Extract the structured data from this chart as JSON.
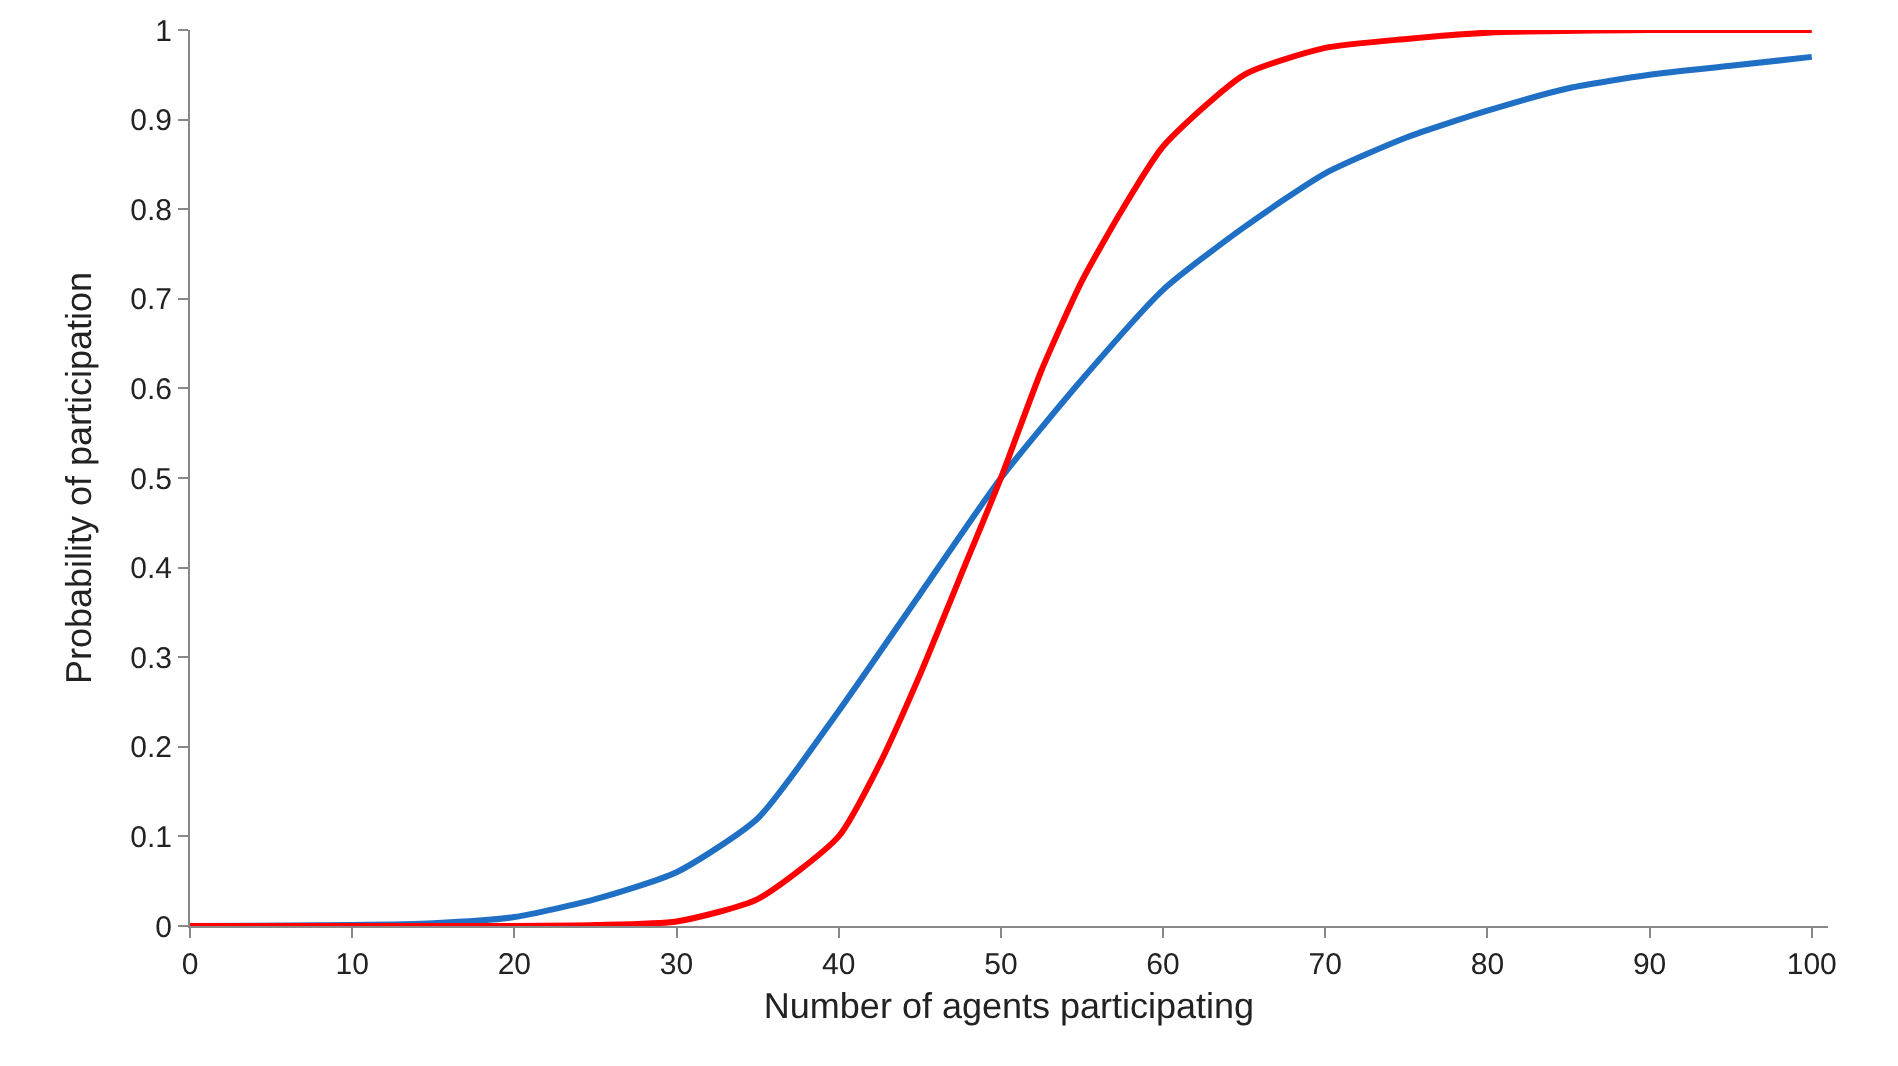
{
  "chart_data": {
    "type": "line",
    "xlabel": "Number of agents participating",
    "ylabel": "Probability of participation",
    "xlim": [
      0,
      101
    ],
    "xticks": [
      0,
      10,
      20,
      30,
      40,
      50,
      60,
      70,
      80,
      90,
      100
    ],
    "ylim": [
      0,
      1
    ],
    "yticks": [
      0,
      0.1,
      0.2,
      0.3,
      0.4,
      0.5,
      0.6,
      0.7,
      0.8,
      0.9,
      1
    ],
    "grid": false,
    "marker": "none",
    "line_style": "solid",
    "series": [
      {
        "color": "#1f6fc5",
        "x": [
          0,
          10,
          15,
          20,
          25,
          30,
          35,
          40,
          45,
          50,
          55,
          60,
          65,
          70,
          75,
          80,
          85,
          90,
          95,
          100
        ],
        "values": [
          0,
          0.001,
          0.003,
          0.01,
          0.03,
          0.06,
          0.12,
          0.24,
          0.37,
          0.5,
          0.61,
          0.71,
          0.78,
          0.84,
          0.88,
          0.91,
          0.935,
          0.95,
          0.96,
          0.97
        ]
      },
      {
        "color": "#ff0000",
        "x": [
          0,
          20,
          25,
          30,
          35,
          40,
          42.5,
          45,
          47.5,
          50,
          52.5,
          55,
          57.5,
          60,
          65,
          70,
          75,
          80,
          90,
          100
        ],
        "values": [
          0,
          0,
          0.001,
          0.005,
          0.03,
          0.1,
          0.18,
          0.28,
          0.39,
          0.5,
          0.62,
          0.72,
          0.8,
          0.87,
          0.95,
          0.98,
          0.99,
          0.997,
          1,
          1
        ]
      }
    ]
  }
}
